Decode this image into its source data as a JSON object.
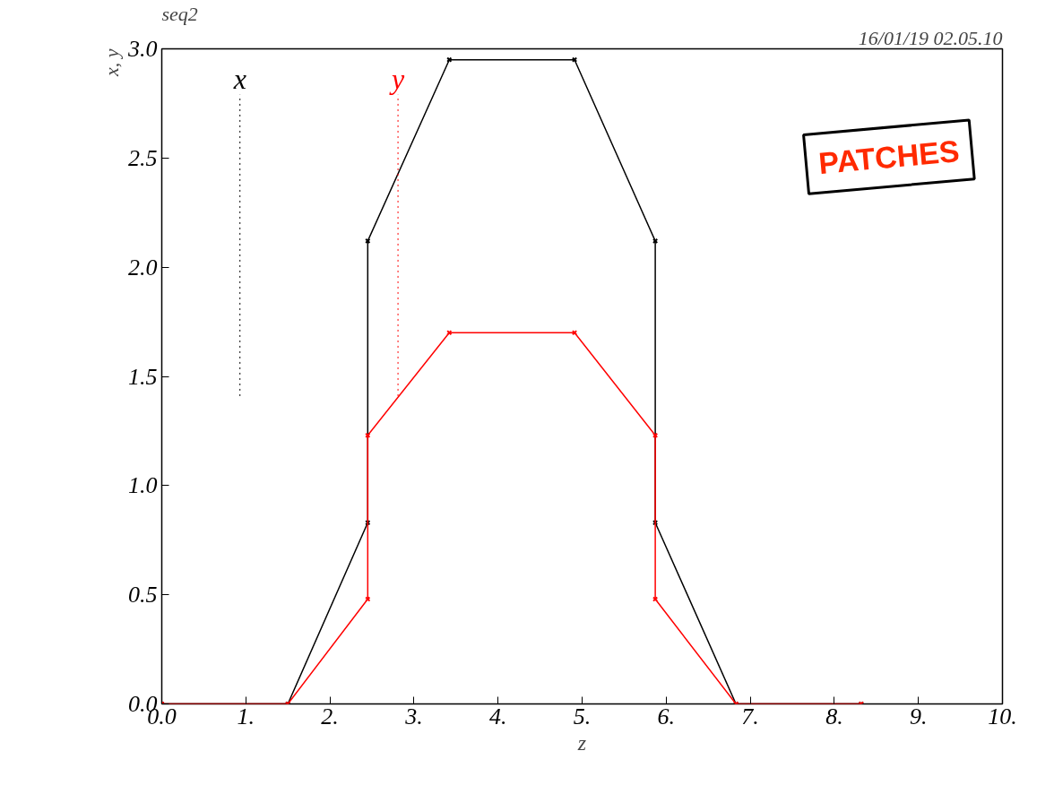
{
  "chart_data": {
    "type": "line",
    "title": "seq2",
    "subtitle": "16/01/19 02.05.10",
    "xlabel": "z",
    "ylabel": "x, y",
    "annotations": [
      "PATCHES"
    ],
    "xlim": [
      0,
      10
    ],
    "ylim": [
      0,
      3
    ],
    "xticks": [
      {
        "value": 0,
        "label": "0.0"
      },
      {
        "value": 1,
        "label": "1."
      },
      {
        "value": 2,
        "label": "2."
      },
      {
        "value": 3,
        "label": "3."
      },
      {
        "value": 4,
        "label": "4."
      },
      {
        "value": 5,
        "label": "5."
      },
      {
        "value": 6,
        "label": "6."
      },
      {
        "value": 7,
        "label": "7."
      },
      {
        "value": 8,
        "label": "8."
      },
      {
        "value": 9,
        "label": "9."
      },
      {
        "value": 10,
        "label": "10."
      }
    ],
    "yticks": [
      {
        "value": 0,
        "label": "0.0"
      },
      {
        "value": 0.5,
        "label": "0.5"
      },
      {
        "value": 1,
        "label": "1.0"
      },
      {
        "value": 1.5,
        "label": "1.5"
      },
      {
        "value": 2,
        "label": "2.0"
      },
      {
        "value": 2.5,
        "label": "2.5"
      },
      {
        "value": 3,
        "label": "3.0"
      }
    ],
    "grid": false,
    "legend": "top left",
    "marker": "cross",
    "line_style": "solid",
    "series": [
      {
        "name": "x",
        "color": "#000000",
        "x": [
          0,
          1.5,
          2.45,
          2.45,
          3.42,
          4.91,
          5.87,
          5.87,
          6.83,
          8.32
        ],
        "values": [
          0,
          0,
          0.83,
          2.12,
          2.95,
          2.95,
          2.12,
          0.83,
          0,
          0
        ]
      },
      {
        "name": "y",
        "color": "#ff0000",
        "x": [
          0,
          1.5,
          2.45,
          2.45,
          3.42,
          4.91,
          5.87,
          5.87,
          6.83,
          8.32
        ],
        "values": [
          0,
          0,
          0.48,
          1.23,
          1.7,
          1.7,
          1.23,
          0.48,
          0,
          0
        ]
      }
    ]
  }
}
